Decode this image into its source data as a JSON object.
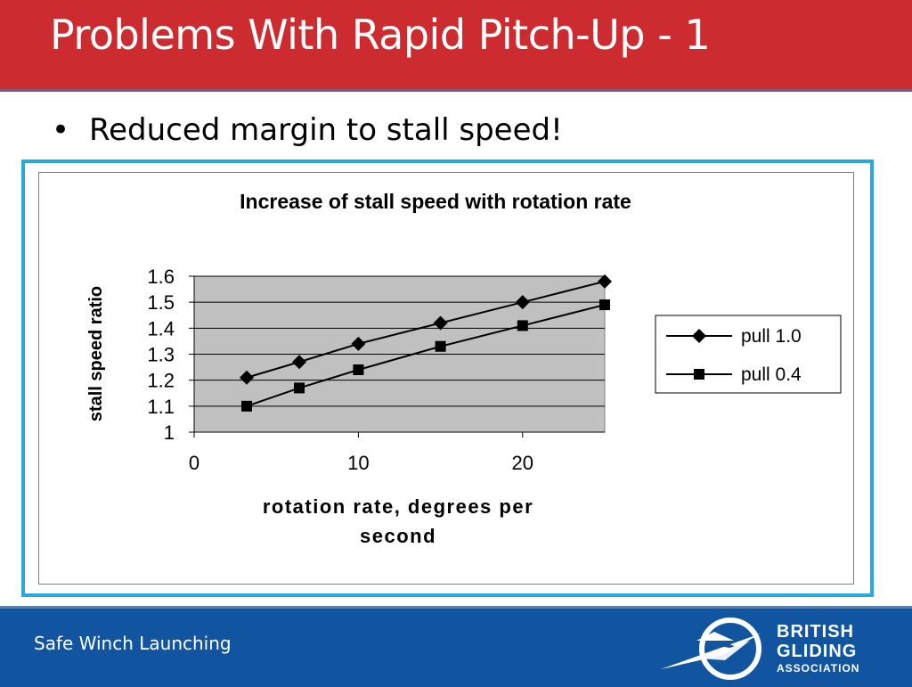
{
  "slide": {
    "title": "Problems With Rapid Pitch-Up - 1",
    "bullet": "Reduced margin to stall speed!",
    "footer": "Safe Winch Launching",
    "logo": {
      "line1": "BRITISH",
      "line2": "GLIDING",
      "line3": "ASSOCIATION"
    }
  },
  "colors": {
    "header_bg": "#cc2b2f",
    "footer_bg": "#1155a1",
    "frame_border": "#29a8df",
    "plot_bg": "#c0c0c0"
  },
  "chart_data": {
    "type": "line",
    "title": "Increase of stall speed with rotation rate",
    "xlabel_lines": [
      "rotation rate, degrees per",
      "second"
    ],
    "ylabel": "stall speed ratio",
    "xlim": [
      0,
      25
    ],
    "ylim": [
      1,
      1.6
    ],
    "xticks": [
      "0",
      "10",
      "20"
    ],
    "yticks": [
      "1",
      "1.1",
      "1.2",
      "1.3",
      "1.4",
      "1.5",
      "1.6"
    ],
    "grid": true,
    "legend_position": "right",
    "series": [
      {
        "name": "pull 1.0",
        "marker": "diamond",
        "x": [
          3.2,
          6.4,
          10,
          15,
          20,
          25
        ],
        "y": [
          1.21,
          1.27,
          1.34,
          1.42,
          1.5,
          1.58
        ]
      },
      {
        "name": "pull 0.4",
        "marker": "square",
        "x": [
          3.2,
          6.4,
          10,
          15,
          20,
          25
        ],
        "y": [
          1.1,
          1.17,
          1.24,
          1.33,
          1.41,
          1.49
        ]
      }
    ]
  }
}
